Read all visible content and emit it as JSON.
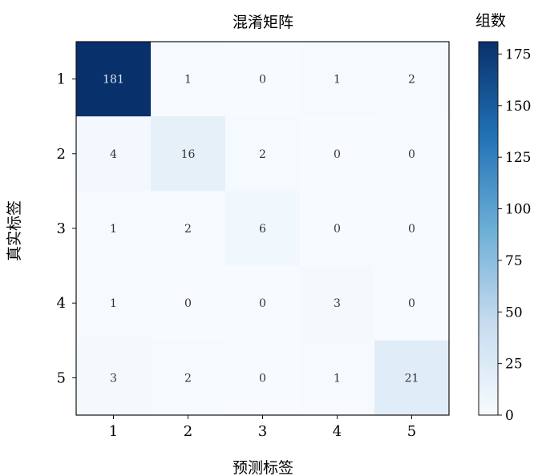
{
  "chart_data": {
    "type": "heatmap",
    "title": "混淆矩阵",
    "xlabel": "预测标签",
    "ylabel": "真实标签",
    "x_categories": [
      "1",
      "2",
      "3",
      "4",
      "5"
    ],
    "y_categories": [
      "1",
      "2",
      "3",
      "4",
      "5"
    ],
    "values": [
      [
        181,
        1,
        0,
        1,
        2
      ],
      [
        4,
        16,
        2,
        0,
        0
      ],
      [
        1,
        2,
        6,
        0,
        0
      ],
      [
        1,
        0,
        0,
        3,
        0
      ],
      [
        3,
        2,
        0,
        1,
        21
      ]
    ],
    "colorbar": {
      "label": "组数",
      "range": [
        0,
        181
      ],
      "ticks": [
        0,
        25,
        50,
        75,
        100,
        125,
        150,
        175
      ]
    },
    "colormap": "Blues",
    "colors": {
      "low": "#f7fbff",
      "mid": "#6baed6",
      "high": "#08306b"
    },
    "grid": false
  }
}
